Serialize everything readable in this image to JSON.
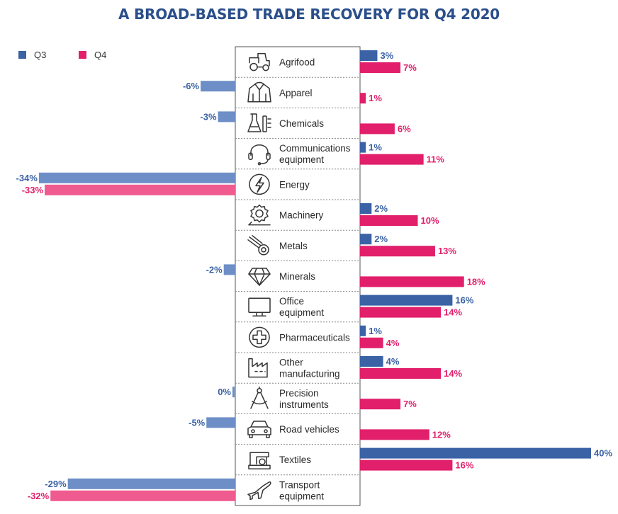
{
  "colors": {
    "q3": "#3a62a5",
    "q3_light": "#6d8ec6",
    "q4": "#e11f6b",
    "q4_light": "#ef5b8e",
    "title": "#2b4f8a",
    "text": "#2a2a2a"
  },
  "chart_data": {
    "type": "bar",
    "orientation": "horizontal-diverging",
    "title": "A BROAD-BASED TRADE RECOVERY FOR Q4 2020",
    "legend_position": "top-left",
    "xlim": [
      -34,
      40
    ],
    "series": [
      {
        "name": "Q3",
        "values": [
          3,
          -6,
          -3,
          1,
          -34,
          2,
          2,
          -2,
          16,
          1,
          4,
          0,
          -5,
          40,
          -29
        ]
      },
      {
        "name": "Q4",
        "values": [
          7,
          1,
          6,
          11,
          -33,
          10,
          13,
          18,
          14,
          4,
          14,
          7,
          12,
          16,
          -32
        ]
      }
    ],
    "categories": [
      {
        "lines": [
          "Agrifood"
        ],
        "icon": "tractor-icon"
      },
      {
        "lines": [
          "Apparel"
        ],
        "icon": "jacket-icon"
      },
      {
        "lines": [
          "Chemicals"
        ],
        "icon": "lab-flask-icon"
      },
      {
        "lines": [
          "Communications",
          "equipment"
        ],
        "icon": "headset-icon"
      },
      {
        "lines": [
          "Energy"
        ],
        "icon": "lightning-icon"
      },
      {
        "lines": [
          "Machinery"
        ],
        "icon": "gear-icon"
      },
      {
        "lines": [
          "Metals"
        ],
        "icon": "metal-coil-icon"
      },
      {
        "lines": [
          "Minerals"
        ],
        "icon": "gem-icon"
      },
      {
        "lines": [
          "Office",
          "equipment"
        ],
        "icon": "monitor-icon"
      },
      {
        "lines": [
          "Pharmaceuticals"
        ],
        "icon": "medical-cross-icon"
      },
      {
        "lines": [
          "Other",
          "manufacturing"
        ],
        "icon": "factory-icon"
      },
      {
        "lines": [
          "Precision",
          "instruments"
        ],
        "icon": "compass-icon"
      },
      {
        "lines": [
          "Road vehicles"
        ],
        "icon": "car-icon"
      },
      {
        "lines": [
          "Textiles"
        ],
        "icon": "sewing-machine-icon"
      },
      {
        "lines": [
          "Transport",
          "equipment"
        ],
        "icon": "airplane-icon"
      }
    ],
    "value_labels": {
      "q3": [
        "3%",
        "-6%",
        "-3%",
        "1%",
        "-34%",
        "2%",
        "2%",
        "-2%",
        "16%",
        "1%",
        "4%",
        "0%",
        "-5%",
        "40%",
        "-29%"
      ],
      "q4": [
        "7%",
        "1%",
        "6%",
        "11%",
        "-33%",
        "10%",
        "13%",
        "18%",
        "14%",
        "4%",
        "14%",
        "7%",
        "12%",
        "16%",
        "-32%"
      ]
    }
  }
}
